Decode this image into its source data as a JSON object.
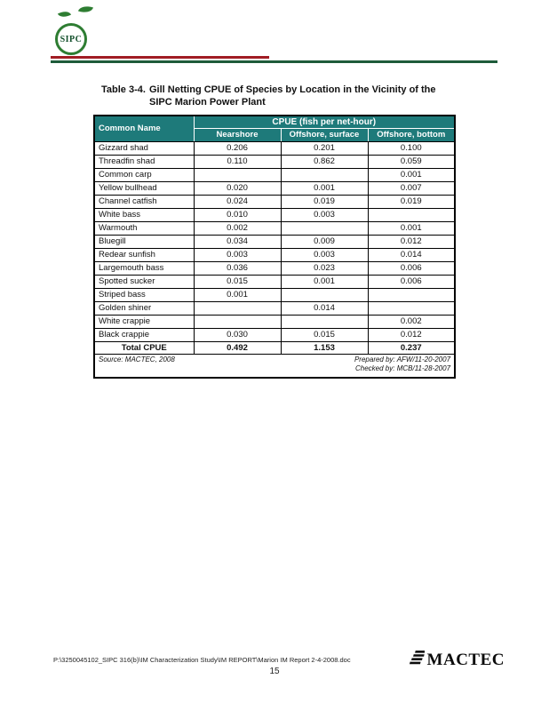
{
  "header": {
    "logo_text": "SIPC"
  },
  "caption": {
    "label": "Table 3-4.",
    "text": "Gill Netting CPUE of Species by Location in the Vicinity of the SIPC Marion Power Plant"
  },
  "table": {
    "common_name_header": "Common Name",
    "group_header": "CPUE (fish per net-hour)",
    "columns": [
      "Nearshore",
      "Offshore, surface",
      "Offshore, bottom"
    ],
    "rows": [
      {
        "name": "Gizzard shad",
        "values": [
          "0.206",
          "0.201",
          "0.100"
        ]
      },
      {
        "name": "Threadfin shad",
        "values": [
          "0.110",
          "0.862",
          "0.059"
        ]
      },
      {
        "name": "Common carp",
        "values": [
          "",
          "",
          "0.001"
        ]
      },
      {
        "name": "Yellow bullhead",
        "values": [
          "0.020",
          "0.001",
          "0.007"
        ]
      },
      {
        "name": "Channel catfish",
        "values": [
          "0.024",
          "0.019",
          "0.019"
        ]
      },
      {
        "name": "White bass",
        "values": [
          "0.010",
          "0.003",
          ""
        ]
      },
      {
        "name": "Warmouth",
        "values": [
          "0.002",
          "",
          "0.001"
        ]
      },
      {
        "name": "Bluegill",
        "values": [
          "0.034",
          "0.009",
          "0.012"
        ]
      },
      {
        "name": "Redear sunfish",
        "values": [
          "0.003",
          "0.003",
          "0.014"
        ]
      },
      {
        "name": "Largemouth bass",
        "values": [
          "0.036",
          "0.023",
          "0.006"
        ]
      },
      {
        "name": "Spotted sucker",
        "values": [
          "0.015",
          "0.001",
          "0.006"
        ]
      },
      {
        "name": "Striped bass",
        "values": [
          "0.001",
          "",
          ""
        ]
      },
      {
        "name": "Golden shiner",
        "values": [
          "",
          "0.014",
          ""
        ]
      },
      {
        "name": "White crappie",
        "values": [
          "",
          "",
          "0.002"
        ]
      },
      {
        "name": "Black crappie",
        "values": [
          "0.030",
          "0.015",
          "0.012"
        ]
      }
    ],
    "total": {
      "name": "Total CPUE",
      "values": [
        "0.492",
        "1.153",
        "0.237"
      ]
    },
    "source": "Source: MACTEC, 2008",
    "prepared_by": "Prepared by: AFW/11-20-2007",
    "checked_by": "Checked by: MCB/11-28-2007"
  },
  "footer": {
    "path": "P:\\3250045102_SIPC 316(b)\\IM Characterization Study\\IM REPORT\\Marion IM Report 2-4-2008.doc",
    "page_number": "15",
    "brand": "MACTEC"
  },
  "colors": {
    "header_teal": "#1e7a7a",
    "rule_red": "#a11d24",
    "rule_green": "#1e5b3a",
    "logo_green": "#2e7d32"
  }
}
